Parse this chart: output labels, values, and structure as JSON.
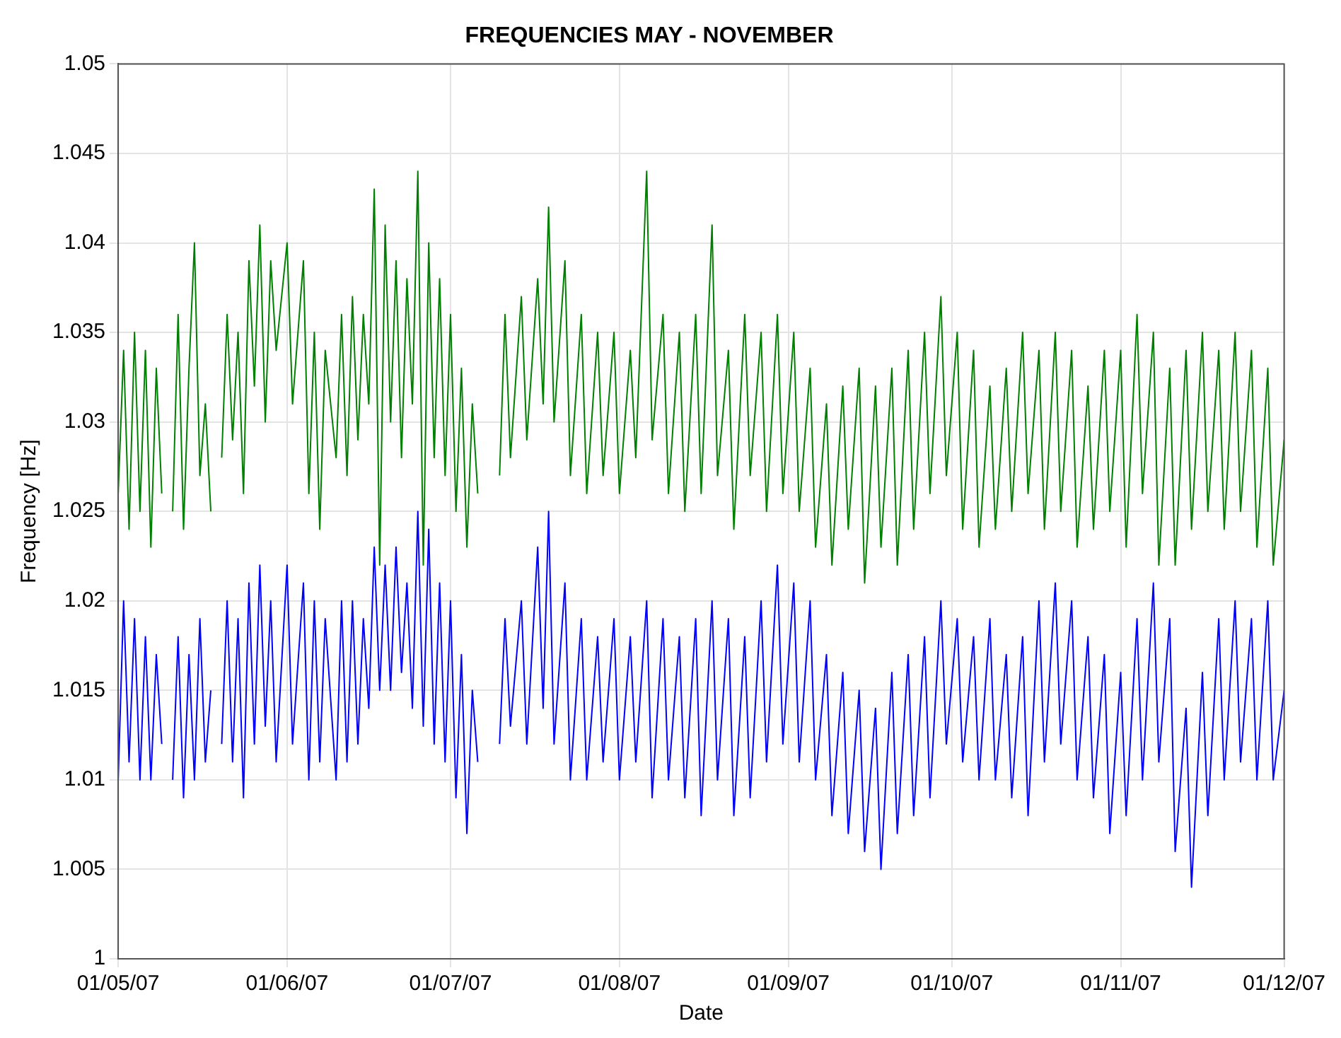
{
  "chart_data": {
    "type": "line",
    "title": "FREQUENCIES MAY - NOVEMBER",
    "xlabel": "Date",
    "ylabel": "Frequency [Hz]",
    "xlim": [
      "2007-05-01",
      "2007-12-01"
    ],
    "xticks": [
      {
        "value": "2007-05-01",
        "label": "01/05/07"
      },
      {
        "value": "2007-06-01",
        "label": "01/06/07"
      },
      {
        "value": "2007-07-01",
        "label": "01/07/07"
      },
      {
        "value": "2007-08-01",
        "label": "01/08/07"
      },
      {
        "value": "2007-09-01",
        "label": "01/09/07"
      },
      {
        "value": "2007-10-01",
        "label": "01/10/07"
      },
      {
        "value": "2007-11-01",
        "label": "01/11/07"
      },
      {
        "value": "2007-12-01",
        "label": "01/12/07"
      }
    ],
    "ylim": [
      1,
      1.05
    ],
    "yticks": [
      1,
      1.005,
      1.01,
      1.015,
      1.02,
      1.025,
      1.03,
      1.035,
      1.04,
      1.045,
      1.05
    ],
    "grid": true,
    "legend": false,
    "marker": "none",
    "line_style": "solid",
    "x": [
      "2007-05-01",
      "2007-05-02",
      "2007-05-03",
      "2007-05-04",
      "2007-05-05",
      "2007-05-06",
      "2007-05-07",
      "2007-05-08",
      "2007-05-09",
      "2007-05-10",
      "2007-05-11",
      "2007-05-12",
      "2007-05-13",
      "2007-05-14",
      "2007-05-15",
      "2007-05-16",
      "2007-05-17",
      "2007-05-18",
      "2007-05-19",
      "2007-05-20",
      "2007-05-21",
      "2007-05-22",
      "2007-05-23",
      "2007-05-24",
      "2007-05-25",
      "2007-05-26",
      "2007-05-27",
      "2007-05-28",
      "2007-05-29",
      "2007-05-30",
      "2007-06-01",
      "2007-06-02",
      "2007-06-04",
      "2007-06-05",
      "2007-06-06",
      "2007-06-07",
      "2007-06-08",
      "2007-06-10",
      "2007-06-11",
      "2007-06-12",
      "2007-06-13",
      "2007-06-14",
      "2007-06-15",
      "2007-06-16",
      "2007-06-17",
      "2007-06-18",
      "2007-06-19",
      "2007-06-20",
      "2007-06-21",
      "2007-06-22",
      "2007-06-23",
      "2007-06-24",
      "2007-06-25",
      "2007-06-26",
      "2007-06-27",
      "2007-06-28",
      "2007-06-29",
      "2007-06-30",
      "2007-07-01",
      "2007-07-02",
      "2007-07-03",
      "2007-07-04",
      "2007-07-05",
      "2007-07-06",
      "2007-07-07",
      "2007-07-10",
      "2007-07-11",
      "2007-07-12",
      "2007-07-14",
      "2007-07-15",
      "2007-07-17",
      "2007-07-18",
      "2007-07-19",
      "2007-07-20",
      "2007-07-22",
      "2007-07-23",
      "2007-07-25",
      "2007-07-26",
      "2007-07-28",
      "2007-07-29",
      "2007-07-31",
      "2007-08-01",
      "2007-08-03",
      "2007-08-04",
      "2007-08-06",
      "2007-08-07",
      "2007-08-09",
      "2007-08-10",
      "2007-08-12",
      "2007-08-13",
      "2007-08-15",
      "2007-08-16",
      "2007-08-18",
      "2007-08-19",
      "2007-08-21",
      "2007-08-22",
      "2007-08-24",
      "2007-08-25",
      "2007-08-27",
      "2007-08-28",
      "2007-08-30",
      "2007-08-31",
      "2007-09-02",
      "2007-09-03",
      "2007-09-05",
      "2007-09-06",
      "2007-09-08",
      "2007-09-09",
      "2007-09-11",
      "2007-09-12",
      "2007-09-14",
      "2007-09-15",
      "2007-09-17",
      "2007-09-18",
      "2007-09-20",
      "2007-09-21",
      "2007-09-23",
      "2007-09-24",
      "2007-09-26",
      "2007-09-27",
      "2007-09-29",
      "2007-09-30",
      "2007-10-02",
      "2007-10-03",
      "2007-10-05",
      "2007-10-06",
      "2007-10-08",
      "2007-10-09",
      "2007-10-11",
      "2007-10-12",
      "2007-10-14",
      "2007-10-15",
      "2007-10-17",
      "2007-10-18",
      "2007-10-20",
      "2007-10-21",
      "2007-10-23",
      "2007-10-24",
      "2007-10-26",
      "2007-10-27",
      "2007-10-29",
      "2007-10-30",
      "2007-11-01",
      "2007-11-02",
      "2007-11-04",
      "2007-11-05",
      "2007-11-07",
      "2007-11-08",
      "2007-11-10",
      "2007-11-11",
      "2007-11-13",
      "2007-11-14",
      "2007-11-16",
      "2007-11-17",
      "2007-11-19",
      "2007-11-20",
      "2007-11-22",
      "2007-11-23",
      "2007-11-25",
      "2007-11-26",
      "2007-11-28",
      "2007-11-29",
      "2007-12-01"
    ],
    "series": [
      {
        "color": "#008000",
        "values": [
          1.026,
          1.034,
          1.024,
          1.035,
          1.025,
          1.034,
          1.023,
          1.033,
          1.026,
          null,
          1.025,
          1.036,
          1.024,
          1.033,
          1.04,
          1.027,
          1.031,
          1.025,
          null,
          1.028,
          1.036,
          1.029,
          1.035,
          1.026,
          1.039,
          1.032,
          1.041,
          1.03,
          1.039,
          1.034,
          1.04,
          1.031,
          1.039,
          1.026,
          1.035,
          1.024,
          1.034,
          1.028,
          1.036,
          1.027,
          1.037,
          1.029,
          1.036,
          1.031,
          1.043,
          1.022,
          1.041,
          1.03,
          1.039,
          1.028,
          1.038,
          1.031,
          1.044,
          1.022,
          1.04,
          1.028,
          1.038,
          1.027,
          1.036,
          1.025,
          1.033,
          1.023,
          1.031,
          1.026,
          null,
          1.027,
          1.036,
          1.028,
          1.037,
          1.029,
          1.038,
          1.031,
          1.042,
          1.03,
          1.039,
          1.027,
          1.036,
          1.026,
          1.035,
          1.027,
          1.035,
          1.026,
          1.034,
          1.028,
          1.044,
          1.029,
          1.036,
          1.026,
          1.035,
          1.025,
          1.036,
          1.026,
          1.041,
          1.027,
          1.034,
          1.024,
          1.036,
          1.027,
          1.035,
          1.025,
          1.036,
          1.026,
          1.035,
          1.025,
          1.033,
          1.023,
          1.031,
          1.022,
          1.032,
          1.024,
          1.033,
          1.021,
          1.032,
          1.023,
          1.033,
          1.022,
          1.034,
          1.024,
          1.035,
          1.026,
          1.037,
          1.027,
          1.035,
          1.024,
          1.034,
          1.023,
          1.032,
          1.024,
          1.033,
          1.025,
          1.035,
          1.026,
          1.034,
          1.024,
          1.035,
          1.025,
          1.034,
          1.023,
          1.032,
          1.024,
          1.034,
          1.025,
          1.034,
          1.023,
          1.036,
          1.026,
          1.035,
          1.022,
          1.033,
          1.022,
          1.034,
          1.024,
          1.035,
          1.025,
          1.034,
          1.024,
          1.035,
          1.025,
          1.034,
          1.023,
          1.033,
          1.022,
          1.029
        ]
      },
      {
        "color": "#0000ff",
        "values": [
          1.01,
          1.02,
          1.011,
          1.019,
          1.01,
          1.018,
          1.01,
          1.017,
          1.012,
          null,
          1.01,
          1.018,
          1.009,
          1.017,
          1.01,
          1.019,
          1.011,
          1.015,
          null,
          1.012,
          1.02,
          1.011,
          1.019,
          1.009,
          1.021,
          1.012,
          1.022,
          1.013,
          1.02,
          1.011,
          1.022,
          1.012,
          1.021,
          1.01,
          1.02,
          1.011,
          1.019,
          1.01,
          1.02,
          1.011,
          1.02,
          1.012,
          1.019,
          1.014,
          1.023,
          1.015,
          1.022,
          1.015,
          1.023,
          1.016,
          1.021,
          1.014,
          1.025,
          1.013,
          1.024,
          1.012,
          1.021,
          1.011,
          1.02,
          1.009,
          1.017,
          1.007,
          1.015,
          1.011,
          null,
          1.012,
          1.019,
          1.013,
          1.02,
          1.012,
          1.023,
          1.014,
          1.025,
          1.012,
          1.021,
          1.01,
          1.019,
          1.01,
          1.018,
          1.011,
          1.019,
          1.01,
          1.018,
          1.011,
          1.02,
          1.009,
          1.019,
          1.01,
          1.018,
          1.009,
          1.019,
          1.008,
          1.02,
          1.01,
          1.019,
          1.008,
          1.018,
          1.009,
          1.02,
          1.011,
          1.022,
          1.012,
          1.021,
          1.011,
          1.02,
          1.01,
          1.017,
          1.008,
          1.016,
          1.007,
          1.015,
          1.006,
          1.014,
          1.005,
          1.016,
          1.007,
          1.017,
          1.008,
          1.018,
          1.009,
          1.02,
          1.012,
          1.019,
          1.011,
          1.018,
          1.01,
          1.019,
          1.01,
          1.017,
          1.009,
          1.018,
          1.008,
          1.02,
          1.011,
          1.021,
          1.012,
          1.02,
          1.01,
          1.018,
          1.009,
          1.017,
          1.007,
          1.016,
          1.008,
          1.019,
          1.01,
          1.021,
          1.011,
          1.019,
          1.006,
          1.014,
          1.004,
          1.016,
          1.008,
          1.019,
          1.01,
          1.02,
          1.011,
          1.019,
          1.01,
          1.02,
          1.01,
          1.015
        ]
      }
    ]
  }
}
